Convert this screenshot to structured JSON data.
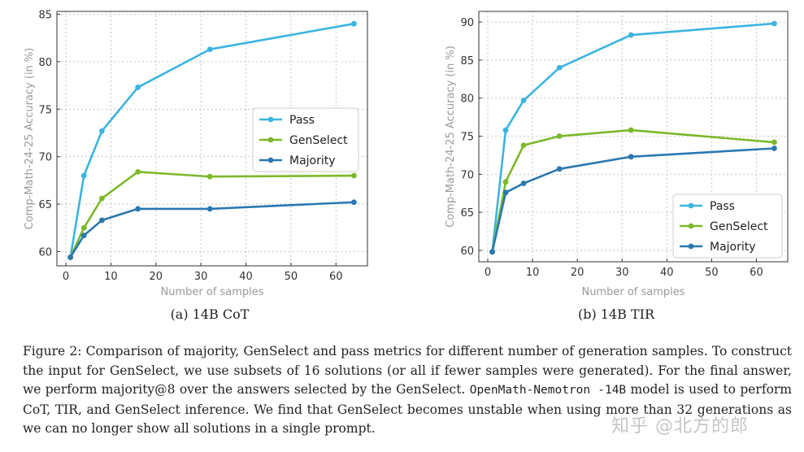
{
  "chart_data": [
    {
      "type": "line",
      "subcaption": "(a) 14B CoT",
      "xlabel": "Number of samples",
      "ylabel": "Comp-Math-24-25 Accuracy (in %)",
      "xlim": [
        -2,
        67
      ],
      "ylim": [
        58.5,
        85.3
      ],
      "xticks": [
        0,
        10,
        20,
        30,
        40,
        50,
        60
      ],
      "yticks": [
        60,
        65,
        70,
        75,
        80,
        85
      ],
      "grid": true,
      "legend_position": "center-right",
      "x": [
        1,
        4,
        8,
        16,
        32,
        64
      ],
      "series": [
        {
          "name": "Pass",
          "color": "#3cb4e0",
          "values": [
            59.4,
            68.0,
            72.7,
            77.3,
            81.3,
            84.0
          ]
        },
        {
          "name": "GenSelect",
          "color": "#7cb82a",
          "values": [
            59.4,
            62.5,
            65.6,
            68.4,
            67.9,
            68.0
          ]
        },
        {
          "name": "Majority",
          "color": "#2a78b0",
          "values": [
            59.4,
            61.7,
            63.3,
            64.5,
            64.5,
            65.2
          ]
        }
      ]
    },
    {
      "type": "line",
      "subcaption": "(b) 14B TIR",
      "xlabel": "Number of samples",
      "ylabel": "Comp-Math-24-25 Accuracy (in %)",
      "xlim": [
        -2,
        67
      ],
      "ylim": [
        58.5,
        91.4
      ],
      "xticks": [
        0,
        10,
        20,
        30,
        40,
        50,
        60
      ],
      "yticks": [
        60,
        65,
        70,
        75,
        80,
        85,
        90
      ],
      "grid": true,
      "legend_position": "lower-right",
      "x": [
        1,
        4,
        8,
        16,
        32,
        64
      ],
      "series": [
        {
          "name": "Pass",
          "color": "#3cb4e0",
          "values": [
            59.8,
            75.8,
            79.7,
            84.0,
            88.3,
            89.8
          ]
        },
        {
          "name": "GenSelect",
          "color": "#7cb82a",
          "values": [
            59.8,
            69.0,
            73.8,
            75.0,
            75.8,
            74.2
          ]
        },
        {
          "name": "Majority",
          "color": "#2a78b0",
          "values": [
            59.8,
            67.6,
            68.8,
            70.7,
            72.3,
            73.4
          ]
        }
      ]
    }
  ],
  "caption": {
    "part1": "Figure 2: Comparison of majority, GenSelect and pass metrics for different number of generation samples. To construct the input for GenSelect, we use subsets of 16 solutions (or all if fewer samples were generated). For the final answer, we perform majority@8 over the answers selected by the GenSelect. ",
    "model_name": "OpenMath-Nemotron -14B",
    "part2": " model is used to perform CoT, TIR, and GenSelect inference. We find that GenSelect becomes unstable when using more than 32 generations as we can no longer show all solutions in a single prompt."
  },
  "watermark": "知乎 @北方的郎"
}
